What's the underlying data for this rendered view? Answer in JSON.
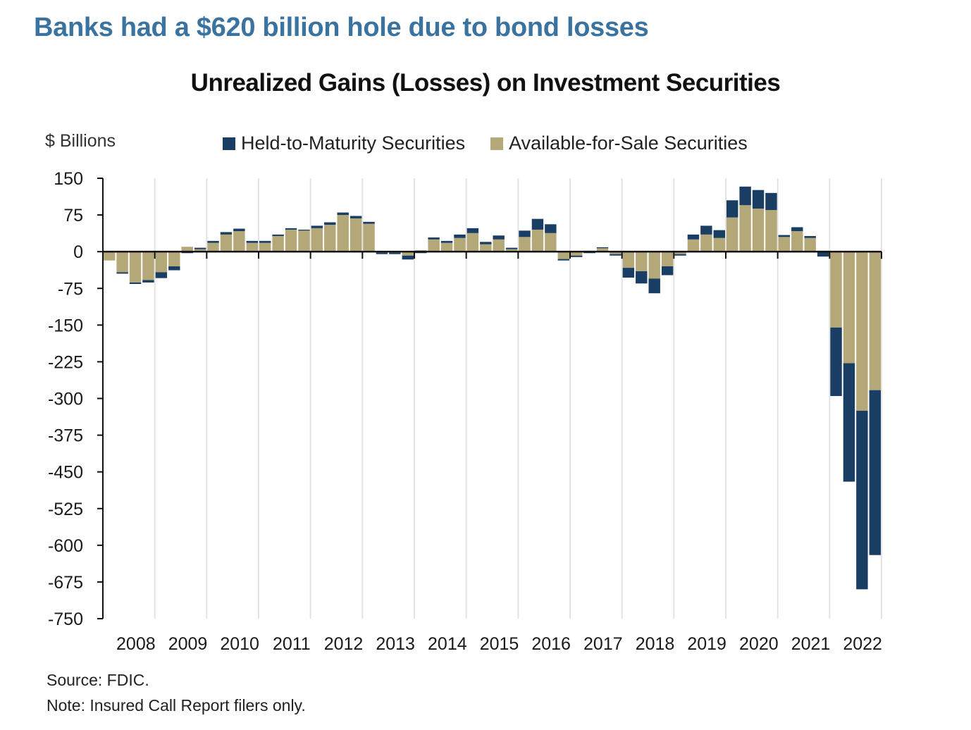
{
  "headline": "Banks had a $620 billion hole due to bond losses",
  "colors": {
    "htm": "#1a3d63",
    "afs": "#b5a878",
    "headline": "#3b73a0",
    "grid": "#e3e3e3",
    "axis": "#111111"
  },
  "footer": {
    "source": "Source: FDIC.",
    "note": "Note: Insured Call Report filers only."
  },
  "chart_data": {
    "type": "bar",
    "stacked": true,
    "title": "Unrealized Gains (Losses) on Investment Securities",
    "ylabel": "$ Billions",
    "xlabel": "",
    "ylim": [
      -750,
      150
    ],
    "yticks": [
      150,
      75,
      0,
      -75,
      -150,
      -225,
      -300,
      -375,
      -450,
      -525,
      -600,
      -675,
      -750
    ],
    "grid": "vertical at year boundaries",
    "legend_position": "top",
    "frequency": "quarterly",
    "years": [
      "2008",
      "2009",
      "2010",
      "2011",
      "2012",
      "2013",
      "2014",
      "2015",
      "2016",
      "2017",
      "2018",
      "2019",
      "2020",
      "2021",
      "2022"
    ],
    "categories": [
      "2008Q1",
      "2008Q2",
      "2008Q3",
      "2008Q4",
      "2009Q1",
      "2009Q2",
      "2009Q3",
      "2009Q4",
      "2010Q1",
      "2010Q2",
      "2010Q3",
      "2010Q4",
      "2011Q1",
      "2011Q2",
      "2011Q3",
      "2011Q4",
      "2012Q1",
      "2012Q2",
      "2012Q3",
      "2012Q4",
      "2013Q1",
      "2013Q2",
      "2013Q3",
      "2013Q4",
      "2014Q1",
      "2014Q2",
      "2014Q3",
      "2014Q4",
      "2015Q1",
      "2015Q2",
      "2015Q3",
      "2015Q4",
      "2016Q1",
      "2016Q2",
      "2016Q3",
      "2016Q4",
      "2017Q1",
      "2017Q2",
      "2017Q3",
      "2017Q4",
      "2018Q1",
      "2018Q2",
      "2018Q3",
      "2018Q4",
      "2019Q1",
      "2019Q2",
      "2019Q3",
      "2019Q4",
      "2020Q1",
      "2020Q2",
      "2020Q3",
      "2020Q4",
      "2021Q1",
      "2021Q2",
      "2021Q3",
      "2021Q4",
      "2022Q1",
      "2022Q2",
      "2022Q3",
      "2022Q4"
    ],
    "series": [
      {
        "name": "Available-for-Sale Securities",
        "values": [
          -18,
          -42,
          -63,
          -58,
          -42,
          -30,
          10,
          5,
          18,
          35,
          42,
          18,
          18,
          32,
          45,
          43,
          48,
          55,
          75,
          68,
          57,
          -2,
          -2,
          -8,
          3,
          25,
          18,
          28,
          38,
          15,
          25,
          5,
          30,
          45,
          38,
          -15,
          -8,
          2,
          7,
          -5,
          -33,
          -40,
          -55,
          -30,
          -5,
          25,
          35,
          28,
          70,
          95,
          88,
          85,
          30,
          42,
          28,
          2,
          -155,
          -228,
          -325,
          -283
        ]
      },
      {
        "name": "Held-to-Maturity Securities",
        "values": [
          0,
          -3,
          -3,
          -5,
          -12,
          -8,
          -3,
          3,
          4,
          5,
          5,
          4,
          4,
          3,
          3,
          2,
          5,
          5,
          5,
          5,
          4,
          -3,
          -3,
          -8,
          -3,
          4,
          4,
          7,
          10,
          5,
          8,
          3,
          13,
          22,
          18,
          -3,
          -3,
          -3,
          2,
          -3,
          -20,
          -25,
          -30,
          -18,
          -3,
          10,
          18,
          16,
          35,
          38,
          38,
          35,
          4,
          8,
          4,
          -10,
          -140,
          -242,
          -365,
          -337
        ]
      }
    ]
  }
}
